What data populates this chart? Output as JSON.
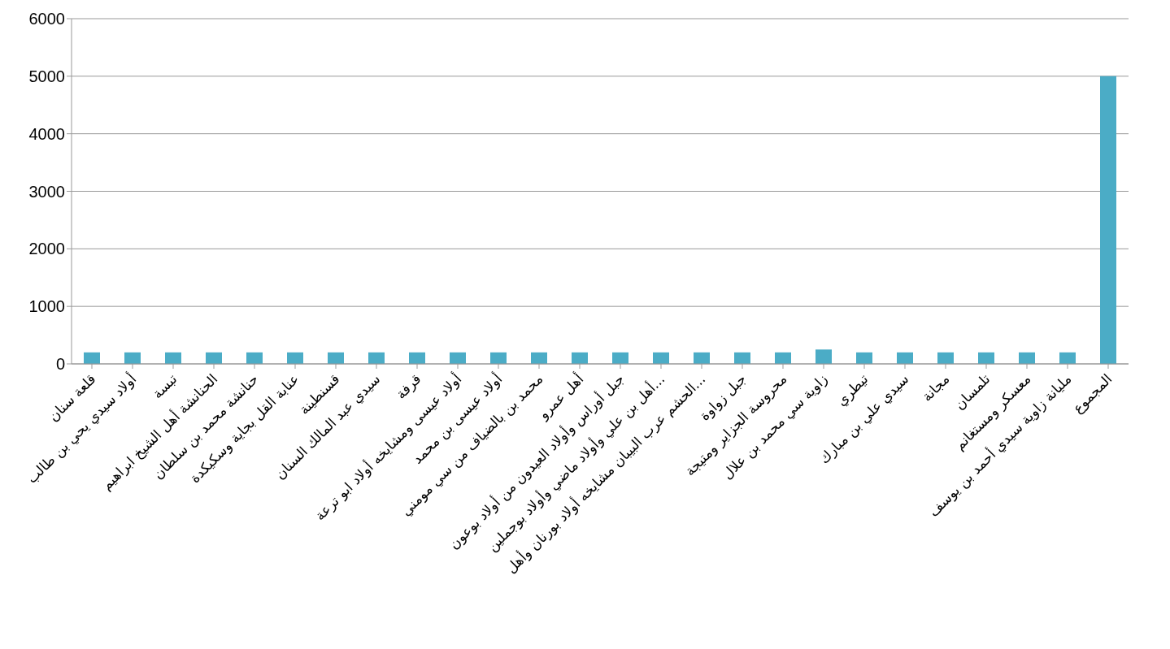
{
  "chart_data": {
    "type": "bar",
    "categories": [
      "قلعة سنان",
      "أولاد سيدي يحي بن طالب",
      "تبسة",
      "الحنانشة أهل الشيخ ابراهيم",
      "حنانشة محمد بن سلطان",
      "عنابة القل بجاية وسكيكدة",
      "قسنطينة",
      "سيدي عبد المالك السنان",
      "قرفة",
      "أولاد عيسى ومشايخه أولاد ابو ترعة",
      "أولاد عيسى بن محمد",
      "محمد بن بالضياف من سي مومني",
      "أهل عمرو",
      "جبل أوراس وأولاد العيدون من أولاد بوعون",
      "أهل بن علي وأولاد ماضي وأولاد بوجملين...",
      "الحشم عرب البيبان مشايخه أولاد بورنان وأهل...",
      "جبل زواوة",
      "محروسة الجزاير ومتيجة",
      "زاوية سي محمد بن علال",
      "تيطري",
      "سيدي علي بن مبارك",
      "مجانة",
      "تلمسان",
      "معسكر ومستغانم",
      "مليانة زاوية سيدي أحمد بن يوسف",
      "المجموع"
    ],
    "values": [
      200,
      200,
      200,
      200,
      200,
      200,
      200,
      200,
      200,
      200,
      200,
      200,
      200,
      200,
      200,
      200,
      200,
      200,
      250,
      200,
      200,
      200,
      200,
      200,
      200,
      5000
    ],
    "color": "#4bacc6",
    "ylim": [
      0,
      6000
    ],
    "yticks": [
      0,
      1000,
      2000,
      3000,
      4000,
      5000,
      6000
    ],
    "grid": "y"
  }
}
